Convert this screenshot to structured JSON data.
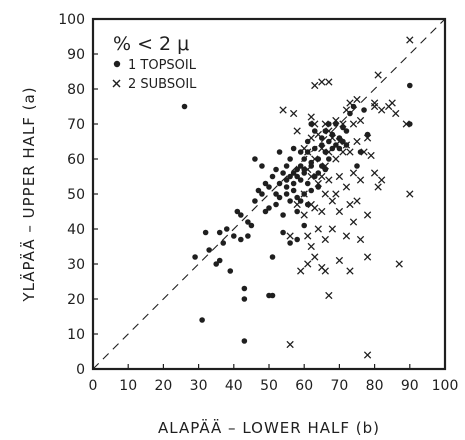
{
  "chart_data": {
    "type": "scatter",
    "xlabel": "ALAPÄÄ – LOWER HALF (b)",
    "ylabel": "YLÄPÄÄ – UPPER HALF (a)",
    "xlim": [
      0,
      100
    ],
    "ylim": [
      0,
      100
    ],
    "x_ticks": [
      "0",
      "10",
      "20",
      "30",
      "40",
      "50",
      "60",
      "70",
      "80",
      "90",
      "100"
    ],
    "y_ticks": [
      "0",
      "10",
      "20",
      "30",
      "40",
      "50",
      "60",
      "70",
      "80",
      "90",
      "100"
    ],
    "grid": false,
    "reference_line": "y = x (dashed)",
    "legend": {
      "placement": "top-left",
      "title": "% < 2 μ",
      "entries": [
        {
          "marker": "•",
          "label": "1 TOPSOIL"
        },
        {
          "marker": "×",
          "label": "2 SUBSOIL"
        }
      ]
    },
    "series": [
      {
        "name": "1 TOPSOIL",
        "marker": "dot",
        "points": [
          [
            26,
            75
          ],
          [
            29,
            32
          ],
          [
            31,
            14
          ],
          [
            32,
            39
          ],
          [
            33,
            34
          ],
          [
            35,
            30
          ],
          [
            36,
            31
          ],
          [
            36,
            39
          ],
          [
            37,
            36
          ],
          [
            38,
            40
          ],
          [
            39,
            28
          ],
          [
            40,
            38
          ],
          [
            41,
            45
          ],
          [
            42,
            44
          ],
          [
            42,
            37
          ],
          [
            43,
            23
          ],
          [
            43,
            20
          ],
          [
            43,
            8
          ],
          [
            44,
            38
          ],
          [
            44,
            42
          ],
          [
            45,
            41
          ],
          [
            46,
            60
          ],
          [
            46,
            48
          ],
          [
            47,
            51
          ],
          [
            48,
            50
          ],
          [
            48,
            58
          ],
          [
            49,
            53
          ],
          [
            49,
            45
          ],
          [
            50,
            46
          ],
          [
            50,
            52
          ],
          [
            50,
            21
          ],
          [
            51,
            21
          ],
          [
            51,
            55
          ],
          [
            51,
            32
          ],
          [
            52,
            50
          ],
          [
            52,
            47
          ],
          [
            52,
            57
          ],
          [
            53,
            49
          ],
          [
            53,
            53
          ],
          [
            53,
            62
          ],
          [
            54,
            56
          ],
          [
            54,
            44
          ],
          [
            54,
            39
          ],
          [
            55,
            52
          ],
          [
            55,
            58
          ],
          [
            55,
            54
          ],
          [
            55,
            50
          ],
          [
            56,
            55
          ],
          [
            56,
            48
          ],
          [
            56,
            36
          ],
          [
            56,
            60
          ],
          [
            57,
            51
          ],
          [
            57,
            53
          ],
          [
            57,
            63
          ],
          [
            57,
            56
          ],
          [
            58,
            57
          ],
          [
            58,
            49
          ],
          [
            58,
            45
          ],
          [
            58,
            37
          ],
          [
            58,
            55
          ],
          [
            59,
            54
          ],
          [
            59,
            58
          ],
          [
            59,
            62
          ],
          [
            59,
            48
          ],
          [
            60,
            56
          ],
          [
            60,
            50
          ],
          [
            60,
            41
          ],
          [
            60,
            60
          ],
          [
            60,
            57
          ],
          [
            61,
            53
          ],
          [
            61,
            65
          ],
          [
            61,
            62
          ],
          [
            61,
            47
          ],
          [
            62,
            70
          ],
          [
            62,
            59
          ],
          [
            62,
            51
          ],
          [
            62,
            58
          ],
          [
            63,
            55
          ],
          [
            63,
            63
          ],
          [
            63,
            68
          ],
          [
            64,
            56
          ],
          [
            64,
            60
          ],
          [
            64,
            52
          ],
          [
            65,
            64
          ],
          [
            65,
            66
          ],
          [
            65,
            58
          ],
          [
            66,
            68
          ],
          [
            66,
            62
          ],
          [
            66,
            57
          ],
          [
            67,
            70
          ],
          [
            67,
            65
          ],
          [
            67,
            60
          ],
          [
            68,
            63
          ],
          [
            68,
            67
          ],
          [
            69,
            64
          ],
          [
            69,
            70
          ],
          [
            70,
            66
          ],
          [
            70,
            63
          ],
          [
            71,
            69
          ],
          [
            71,
            65
          ],
          [
            72,
            64
          ],
          [
            72,
            68
          ],
          [
            73,
            73
          ],
          [
            74,
            75
          ],
          [
            75,
            58
          ],
          [
            76,
            62
          ],
          [
            77,
            74
          ],
          [
            78,
            67
          ],
          [
            90,
            81
          ],
          [
            90,
            70
          ]
        ]
      },
      {
        "name": "2 SUBSOIL",
        "marker": "x",
        "points": [
          [
            54,
            74
          ],
          [
            56,
            38
          ],
          [
            56,
            7
          ],
          [
            57,
            73
          ],
          [
            58,
            68
          ],
          [
            58,
            47
          ],
          [
            59,
            28
          ],
          [
            60,
            63
          ],
          [
            60,
            50
          ],
          [
            60,
            44
          ],
          [
            61,
            62
          ],
          [
            61,
            57
          ],
          [
            61,
            38
          ],
          [
            61,
            30
          ],
          [
            62,
            72
          ],
          [
            62,
            66
          ],
          [
            62,
            55
          ],
          [
            62,
            47
          ],
          [
            62,
            35
          ],
          [
            63,
            81
          ],
          [
            63,
            70
          ],
          [
            63,
            60
          ],
          [
            63,
            46
          ],
          [
            63,
            32
          ],
          [
            64,
            67
          ],
          [
            64,
            53
          ],
          [
            64,
            40
          ],
          [
            65,
            82
          ],
          [
            65,
            63
          ],
          [
            65,
            55
          ],
          [
            65,
            45
          ],
          [
            65,
            29
          ],
          [
            66,
            70
          ],
          [
            66,
            58
          ],
          [
            66,
            50
          ],
          [
            66,
            37
          ],
          [
            66,
            28
          ],
          [
            67,
            82
          ],
          [
            67,
            68
          ],
          [
            67,
            62
          ],
          [
            67,
            54
          ],
          [
            67,
            21
          ],
          [
            68,
            66
          ],
          [
            68,
            48
          ],
          [
            68,
            40
          ],
          [
            69,
            71
          ],
          [
            69,
            60
          ],
          [
            69,
            50
          ],
          [
            70,
            65
          ],
          [
            70,
            55
          ],
          [
            70,
            45
          ],
          [
            70,
            31
          ],
          [
            71,
            70
          ],
          [
            71,
            62
          ],
          [
            72,
            74
          ],
          [
            72,
            64
          ],
          [
            72,
            52
          ],
          [
            72,
            38
          ],
          [
            73,
            76
          ],
          [
            73,
            62
          ],
          [
            73,
            47
          ],
          [
            73,
            28
          ],
          [
            74,
            70
          ],
          [
            74,
            56
          ],
          [
            74,
            42
          ],
          [
            75,
            77
          ],
          [
            75,
            65
          ],
          [
            75,
            48
          ],
          [
            76,
            71
          ],
          [
            76,
            54
          ],
          [
            76,
            37
          ],
          [
            77,
            62
          ],
          [
            78,
            66
          ],
          [
            78,
            44
          ],
          [
            78,
            32
          ],
          [
            78,
            4
          ],
          [
            79,
            61
          ],
          [
            80,
            76
          ],
          [
            80,
            75
          ],
          [
            80,
            56
          ],
          [
            81,
            84
          ],
          [
            81,
            52
          ],
          [
            82,
            74
          ],
          [
            82,
            54
          ],
          [
            84,
            75
          ],
          [
            85,
            76
          ],
          [
            86,
            73
          ],
          [
            87,
            30
          ],
          [
            89,
            70
          ],
          [
            90,
            94
          ],
          [
            90,
            50
          ]
        ]
      }
    ]
  }
}
